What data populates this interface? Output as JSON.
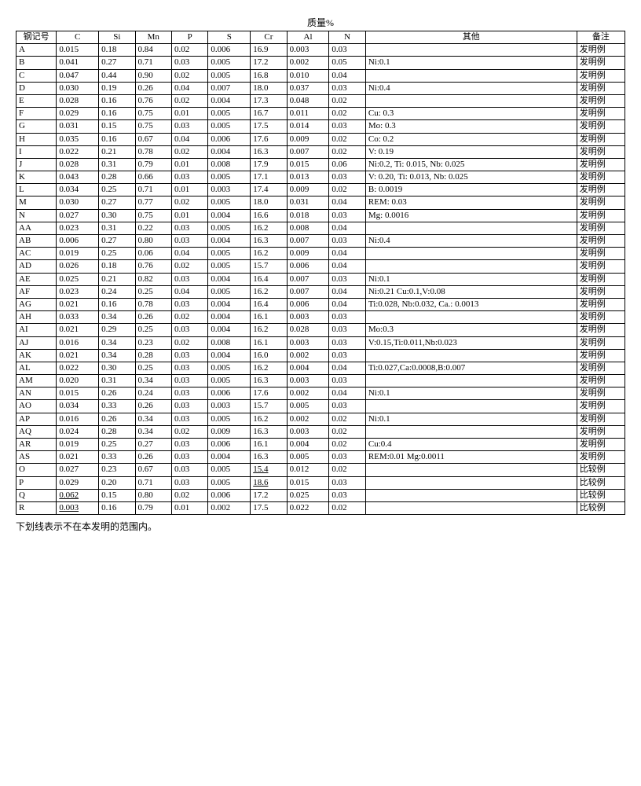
{
  "caption": "质量%",
  "footnote": "下划线表示不在本发明的范围内。",
  "columns": [
    "钢记号",
    "C",
    "Si",
    "Mn",
    "P",
    "S",
    "Cr",
    "Al",
    "N",
    "其他",
    "备注"
  ],
  "col_classes": [
    "col-id",
    "col-c",
    "col-si",
    "col-mn",
    "col-p",
    "col-s",
    "col-cr",
    "col-al",
    "col-n",
    "col-other",
    "col-note"
  ],
  "note_inv": "发明例",
  "note_cmp": "比较例",
  "rows": [
    {
      "id": "A",
      "C": "0.015",
      "Si": "0.18",
      "Mn": "0.84",
      "P": "0.02",
      "S": "0.006",
      "Cr": "16.9",
      "Al": "0.003",
      "N": "0.03",
      "other": "",
      "note": "inv"
    },
    {
      "id": "B",
      "C": "0.041",
      "Si": "0.27",
      "Mn": "0.71",
      "P": "0.03",
      "S": "0.005",
      "Cr": "17.2",
      "Al": "0.002",
      "N": "0.05",
      "other": "Ni:0.1",
      "note": "inv"
    },
    {
      "id": "C",
      "C": "0.047",
      "Si": "0.44",
      "Mn": "0.90",
      "P": "0.02",
      "S": "0.005",
      "Cr": "16.8",
      "Al": "0.010",
      "N": "0.04",
      "other": "",
      "note": "inv"
    },
    {
      "id": "D",
      "C": "0.030",
      "Si": "0.19",
      "Mn": "0.26",
      "P": "0.04",
      "S": "0.007",
      "Cr": "18.0",
      "Al": "0.037",
      "N": "0.03",
      "other": "Ni:0.4",
      "note": "inv"
    },
    {
      "id": "E",
      "C": "0.028",
      "Si": "0.16",
      "Mn": "0.76",
      "P": "0.02",
      "S": "0.004",
      "Cr": "17.3",
      "Al": "0.048",
      "N": "0.02",
      "other": "",
      "note": "inv"
    },
    {
      "id": "F",
      "C": "0.029",
      "Si": "0.16",
      "Mn": "0.75",
      "P": "0.01",
      "S": "0.005",
      "Cr": "16.7",
      "Al": "0.011",
      "N": "0.02",
      "other": "Cu: 0.3",
      "note": "inv"
    },
    {
      "id": "G",
      "C": "0.031",
      "Si": "0.15",
      "Mn": "0.75",
      "P": "0.03",
      "S": "0.005",
      "Cr": "17.5",
      "Al": "0.014",
      "N": "0.03",
      "other": "Mo: 0.3",
      "note": "inv"
    },
    {
      "id": "H",
      "C": "0.035",
      "Si": "0.16",
      "Mn": "0.67",
      "P": "0.04",
      "S": "0.006",
      "Cr": "17.6",
      "Al": "0.009",
      "N": "0.02",
      "other": "Co: 0.2",
      "note": "inv"
    },
    {
      "id": "I",
      "C": "0.022",
      "Si": "0.21",
      "Mn": "0.78",
      "P": "0.02",
      "S": "0.004",
      "Cr": "16.3",
      "Al": "0.007",
      "N": "0.02",
      "other": "V: 0.19",
      "note": "inv"
    },
    {
      "id": "J",
      "C": "0.028",
      "Si": "0.31",
      "Mn": "0.79",
      "P": "0.01",
      "S": "0.008",
      "Cr": "17.9",
      "Al": "0.015",
      "N": "0.06",
      "other": "Ni:0.2, Ti: 0.015, Nb: 0.025",
      "note": "inv"
    },
    {
      "id": "K",
      "C": "0.043",
      "Si": "0.28",
      "Mn": "0.66",
      "P": "0.03",
      "S": "0.005",
      "Cr": "17.1",
      "Al": "0.013",
      "N": "0.03",
      "other": "V: 0.20, Ti: 0.013, Nb: 0.025",
      "note": "inv"
    },
    {
      "id": "L",
      "C": "0.034",
      "Si": "0.25",
      "Mn": "0.71",
      "P": "0.01",
      "S": "0.003",
      "Cr": "17.4",
      "Al": "0.009",
      "N": "0.02",
      "other": "B: 0.0019",
      "note": "inv"
    },
    {
      "id": "M",
      "C": "0.030",
      "Si": "0.27",
      "Mn": "0.77",
      "P": "0.02",
      "S": "0.005",
      "Cr": "18.0",
      "Al": "0.031",
      "N": "0.04",
      "other": "REM: 0.03",
      "note": "inv"
    },
    {
      "id": "N",
      "C": "0.027",
      "Si": "0.30",
      "Mn": "0.75",
      "P": "0.01",
      "S": "0.004",
      "Cr": "16.6",
      "Al": "0.018",
      "N": "0.03",
      "other": "Mg: 0.0016",
      "note": "inv"
    },
    {
      "id": "AA",
      "C": "0.023",
      "Si": "0.31",
      "Mn": "0.22",
      "P": "0.03",
      "S": "0.005",
      "Cr": "16.2",
      "Al": "0.008",
      "N": "0.04",
      "other": "",
      "note": "inv"
    },
    {
      "id": "AB",
      "C": "0.006",
      "Si": "0.27",
      "Mn": "0.80",
      "P": "0.03",
      "S": "0.004",
      "Cr": "16.3",
      "Al": "0.007",
      "N": "0.03",
      "other": "Ni:0.4",
      "note": "inv"
    },
    {
      "id": "AC",
      "C": "0.019",
      "Si": "0.25",
      "Mn": "0.06",
      "P": "0.04",
      "S": "0.005",
      "Cr": "16.2",
      "Al": "0.009",
      "N": "0.04",
      "other": "",
      "note": "inv"
    },
    {
      "id": "AD",
      "C": "0.026",
      "Si": "0.18",
      "Mn": "0.76",
      "P": "0.02",
      "S": "0.005",
      "Cr": "15.7",
      "Al": "0.006",
      "N": "0.04",
      "other": "",
      "note": "inv"
    },
    {
      "id": "AE",
      "C": "0.025",
      "Si": "0.21",
      "Mn": "0.82",
      "P": "0.03",
      "S": "0.004",
      "Cr": "16.4",
      "Al": "0.007",
      "N": "0.03",
      "other": "Ni:0.1",
      "note": "inv"
    },
    {
      "id": "AF",
      "C": "0.023",
      "Si": "0.24",
      "Mn": "0.25",
      "P": "0.04",
      "S": "0.005",
      "Cr": "16.2",
      "Al": "0.007",
      "N": "0.04",
      "other": "Ni:0.21 Cu:0.1,V:0.08",
      "note": "inv"
    },
    {
      "id": "AG",
      "C": "0.021",
      "Si": "0.16",
      "Mn": "0.78",
      "P": "0.03",
      "S": "0.004",
      "Cr": "16.4",
      "Al": "0.006",
      "N": "0.04",
      "other": "Ti:0.028, Nb:0.032, Ca.: 0.0013",
      "note": "inv"
    },
    {
      "id": "AH",
      "C": "0.033",
      "Si": "0.34",
      "Mn": "0.26",
      "P": "0.02",
      "S": "0.004",
      "Cr": "16.1",
      "Al": "0.003",
      "N": "0.03",
      "other": "",
      "note": "inv"
    },
    {
      "id": "AI",
      "C": "0.021",
      "Si": "0.29",
      "Mn": "0.25",
      "P": "0.03",
      "S": "0.004",
      "Cr": "16.2",
      "Al": "0.028",
      "N": "0.03",
      "other": "Mo:0.3",
      "note": "inv"
    },
    {
      "id": "AJ",
      "C": "0.016",
      "Si": "0.34",
      "Mn": "0.23",
      "P": "0.02",
      "S": "0.008",
      "Cr": "16.1",
      "Al": "0.003",
      "N": "0.03",
      "other": "V:0.15,Ti:0.011,Nb:0.023",
      "note": "inv"
    },
    {
      "id": "AK",
      "C": "0.021",
      "Si": "0.34",
      "Mn": "0.28",
      "P": "0.03",
      "S": "0.004",
      "Cr": "16.0",
      "Al": "0.002",
      "N": "0.03",
      "other": "",
      "note": "inv"
    },
    {
      "id": "AL",
      "C": "0.022",
      "Si": "0.30",
      "Mn": "0.25",
      "P": "0.03",
      "S": "0.005",
      "Cr": "16.2",
      "Al": "0.004",
      "N": "0.04",
      "other": "Ti:0.027,Ca:0.0008,B:0.007",
      "note": "inv"
    },
    {
      "id": "AM",
      "C": "0.020",
      "Si": "0.31",
      "Mn": "0.34",
      "P": "0.03",
      "S": "0.005",
      "Cr": "16.3",
      "Al": "0.003",
      "N": "0.03",
      "other": "",
      "note": "inv"
    },
    {
      "id": "AN",
      "C": "0.015",
      "Si": "0.26",
      "Mn": "0.24",
      "P": "0.03",
      "S": "0.006",
      "Cr": "17.6",
      "Al": "0.002",
      "N": "0.04",
      "other": "Ni:0.1",
      "note": "inv"
    },
    {
      "id": "AO",
      "C": "0.034",
      "Si": "0.33",
      "Mn": "0.26",
      "P": "0.03",
      "S": "0.003",
      "Cr": "15.7",
      "Al": "0.005",
      "N": "0.03",
      "other": "",
      "note": "inv"
    },
    {
      "id": "AP",
      "C": "0.016",
      "Si": "0.26",
      "Mn": "0.34",
      "P": "0.03",
      "S": "0.005",
      "Cr": "16.2",
      "Al": "0.002",
      "N": "0.02",
      "other": "Ni:0.1",
      "note": "inv"
    },
    {
      "id": "AQ",
      "C": "0.024",
      "Si": "0.28",
      "Mn": "0.34",
      "P": "0.02",
      "S": "0.009",
      "Cr": "16.3",
      "Al": "0.003",
      "N": "0.02",
      "other": "",
      "note": "inv"
    },
    {
      "id": "AR",
      "C": "0.019",
      "Si": "0.25",
      "Mn": "0.27",
      "P": "0.03",
      "S": "0.006",
      "Cr": "16.1",
      "Al": "0.004",
      "N": "0.02",
      "other": "Cu:0.4",
      "note": "inv"
    },
    {
      "id": "AS",
      "C": "0.021",
      "Si": "0.33",
      "Mn": "0.26",
      "P": "0.03",
      "S": "0.004",
      "Cr": "16.3",
      "Al": "0.005",
      "N": "0.03",
      "other": "REM:0.01 Mg:0.0011",
      "note": "inv"
    },
    {
      "id": "O",
      "C": "0.027",
      "Si": "0.23",
      "Mn": "0.67",
      "P": "0.03",
      "S": "0.005",
      "Cr": "15.4",
      "Cr_ul": true,
      "Al": "0.012",
      "N": "0.02",
      "other": "",
      "note": "cmp"
    },
    {
      "id": "P",
      "C": "0.029",
      "Si": "0.20",
      "Mn": "0.71",
      "P": "0.03",
      "S": "0.005",
      "Cr": "18.6",
      "Cr_ul": true,
      "Al": "0.015",
      "N": "0.03",
      "other": "",
      "note": "cmp"
    },
    {
      "id": "Q",
      "C": "0.062",
      "C_ul": true,
      "Si": "0.15",
      "Mn": "0.80",
      "P": "0.02",
      "S": "0.006",
      "Cr": "17.2",
      "Al": "0.025",
      "N": "0.03",
      "other": "",
      "note": "cmp"
    },
    {
      "id": "R",
      "C": "0.003",
      "C_ul": true,
      "Si": "0.16",
      "Mn": "0.79",
      "P": "0.01",
      "S": "0.002",
      "Cr": "17.5",
      "Al": "0.022",
      "N": "0.02",
      "other": "",
      "note": "cmp"
    }
  ]
}
